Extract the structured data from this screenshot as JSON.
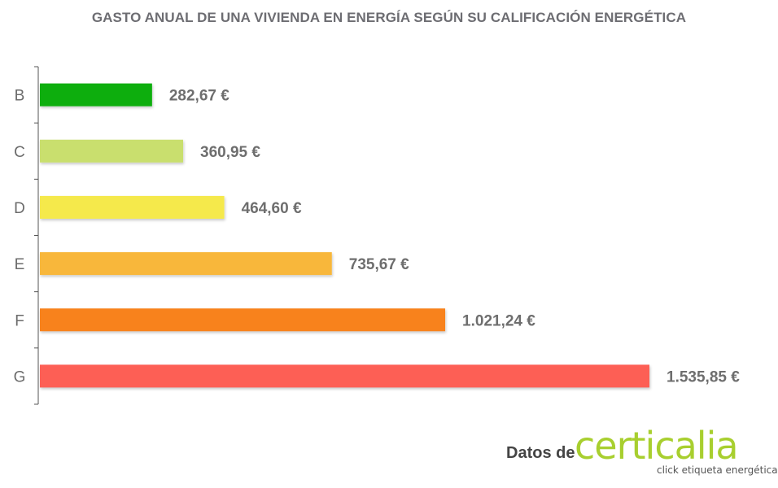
{
  "chart_data": {
    "type": "bar",
    "orientation": "horizontal",
    "title": "GASTO ANUAL DE UNA VIVIENDA EN ENERGÍA SEGÚN SU CALIFICACIÓN ENERGÉTICA",
    "categories": [
      "B",
      "C",
      "D",
      "E",
      "F",
      "G"
    ],
    "values": [
      282.67,
      360.95,
      464.6,
      735.67,
      1021.24,
      1535.85
    ],
    "value_labels": [
      "282,67 €",
      "360,95 €",
      "464,60 €",
      "735,67 €",
      "1.021,24 €",
      "1.535,85 €"
    ],
    "colors": [
      "#0bae0c",
      "#c9df6e",
      "#f5e94c",
      "#f8b73a",
      "#f8821f",
      "#fd5f55"
    ],
    "xlim": [
      0,
      1535.85
    ],
    "grid": false,
    "legend": "none"
  },
  "credit": {
    "prefix": "Datos de",
    "brand": "certicalia",
    "tagline": "click etiqueta energética",
    "brand_color": "#a8cf2f"
  }
}
